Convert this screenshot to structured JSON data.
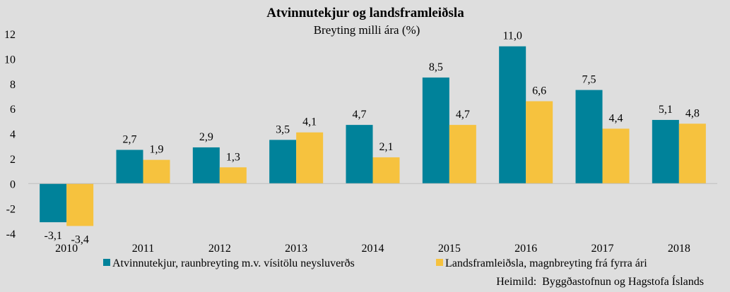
{
  "chart_data": {
    "type": "bar",
    "title": "Atvinnutekjur og landsframleiðsla",
    "subtitle": "Breyting milli ára (%)",
    "categories": [
      "2010",
      "2011",
      "2012",
      "2013",
      "2014",
      "2015",
      "2016",
      "2017",
      "2018"
    ],
    "series": [
      {
        "name": "Atvinnutekjur, raunbreyting m.v. vísitölu neysluverðs",
        "color": "#00829a",
        "values": [
          -3.1,
          2.7,
          2.9,
          3.5,
          4.7,
          8.5,
          11.0,
          7.5,
          5.1
        ],
        "labels": [
          "-3,1",
          "2,7",
          "2,9",
          "3,5",
          "4,7",
          "8,5",
          "11,0",
          "7,5",
          "5,1"
        ]
      },
      {
        "name": "Landsframleiðsla, magnbreyting frá fyrra ári",
        "color": "#f6c23e",
        "values": [
          -3.4,
          1.9,
          1.3,
          4.1,
          2.1,
          4.7,
          6.6,
          4.4,
          4.8
        ],
        "labels": [
          "-3,4",
          "1,9",
          "1,3",
          "4,1",
          "2,1",
          "4,7",
          "6,6",
          "4,4",
          "4,8"
        ]
      }
    ],
    "ylim": [
      -4,
      12
    ],
    "yticks": [
      12,
      10,
      8,
      6,
      4,
      2,
      0,
      -2,
      -4
    ],
    "ytick_labels": [
      "12",
      "10",
      "8",
      "6",
      "4",
      "2",
      "0",
      "-2",
      "-4"
    ],
    "xlabel": "",
    "ylabel": "",
    "grid": false,
    "legend_position": "bottom",
    "source": "Heimild:  Byggðastofnun og Hagstofa Íslands"
  }
}
